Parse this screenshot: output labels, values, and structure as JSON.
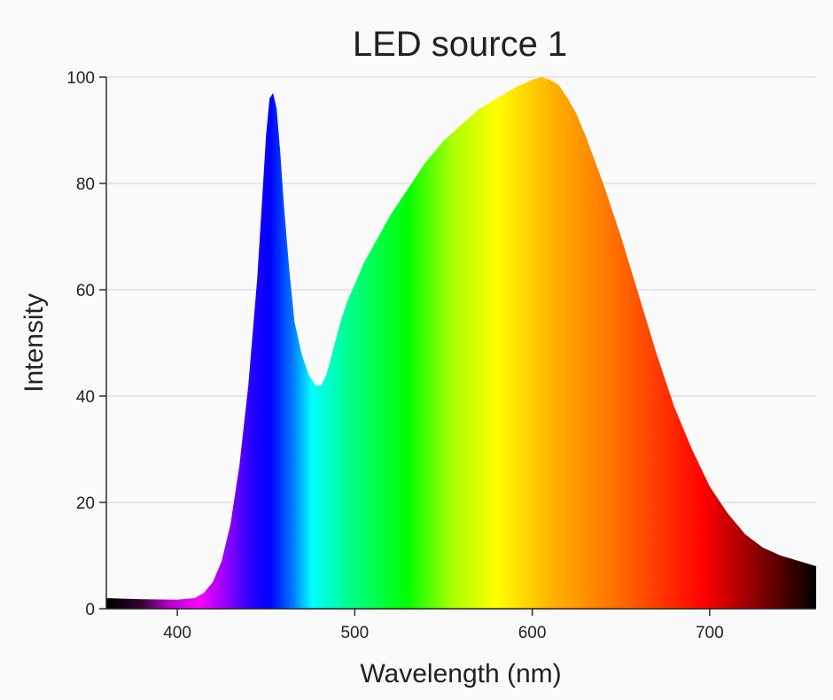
{
  "chart_data": {
    "type": "area",
    "title": "LED source 1",
    "xlabel": "Wavelength (nm)",
    "ylabel": "Intensity",
    "xlim": [
      360,
      760
    ],
    "ylim": [
      0,
      100
    ],
    "xticks": [
      400,
      500,
      600,
      700
    ],
    "yticks": [
      0,
      20,
      40,
      60,
      80,
      100
    ],
    "grid": "horizontal",
    "fill": "visible-spectrum gradient",
    "x": [
      360,
      380,
      400,
      410,
      415,
      420,
      425,
      430,
      435,
      440,
      445,
      448,
      450,
      452,
      454,
      456,
      458,
      460,
      463,
      466,
      470,
      474,
      478,
      481,
      484,
      488,
      492,
      496,
      500,
      505,
      510,
      520,
      530,
      540,
      550,
      560,
      570,
      580,
      590,
      600,
      605,
      610,
      615,
      620,
      625,
      630,
      640,
      650,
      660,
      670,
      680,
      690,
      700,
      710,
      720,
      730,
      740,
      750,
      760
    ],
    "y": [
      2,
      1.8,
      1.7,
      2,
      3,
      5,
      9,
      16,
      27,
      42,
      62,
      78,
      89,
      96,
      97,
      94,
      86,
      76,
      64,
      54,
      48,
      44,
      42,
      42,
      44,
      49,
      54,
      58,
      61,
      65,
      68,
      74,
      79,
      84,
      88,
      91,
      94,
      96,
      98,
      99.5,
      100,
      99.5,
      98.5,
      96,
      93,
      89,
      80,
      70,
      59,
      48,
      38,
      30,
      23,
      18,
      14,
      11.5,
      10,
      9,
      8
    ]
  }
}
